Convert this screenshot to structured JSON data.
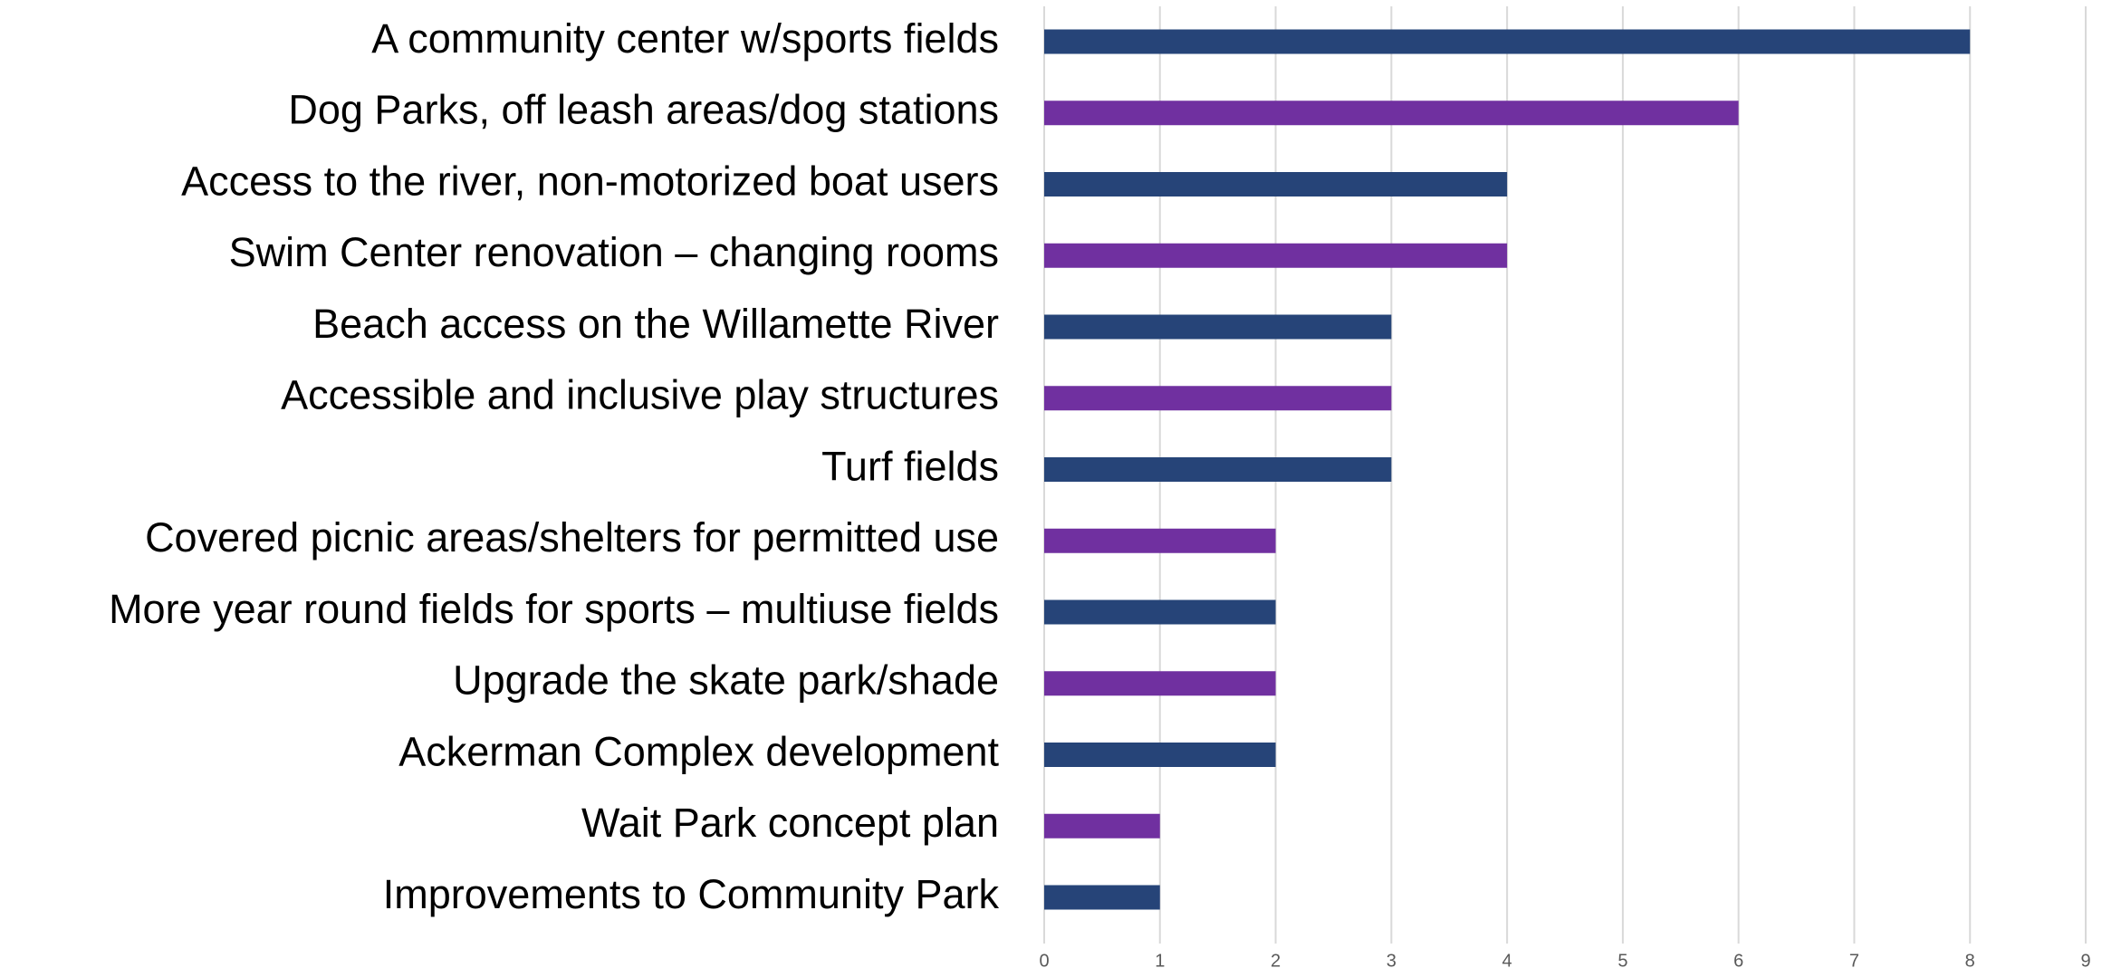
{
  "chart_data": {
    "type": "hbar",
    "categories": [
      "A community center w/sports fields",
      "Dog Parks, off leash areas/dog stations",
      "Access to the river, non-motorized boat users",
      "Swim Center renovation – changing rooms",
      "Beach access on the Willamette River",
      "Accessible and inclusive play structures",
      "Turf fields",
      "Covered picnic areas/shelters for permitted use",
      "More year round fields for sports – multiuse fields",
      "Upgrade the skate park/shade",
      "Ackerman Complex development",
      "Wait Park concept plan",
      "Improvements to Community Park"
    ],
    "values": [
      8,
      6,
      4,
      4,
      3,
      3,
      3,
      2,
      2,
      2,
      2,
      1,
      1
    ],
    "colors": [
      "#264478",
      "#7030a0",
      "#264478",
      "#7030a0",
      "#264478",
      "#7030a0",
      "#264478",
      "#7030a0",
      "#264478",
      "#7030a0",
      "#264478",
      "#7030a0",
      "#264478"
    ],
    "xlim": [
      0,
      9
    ],
    "xticks": [
      0,
      1,
      2,
      3,
      4,
      5,
      6,
      7,
      8,
      9
    ],
    "grid": true
  }
}
